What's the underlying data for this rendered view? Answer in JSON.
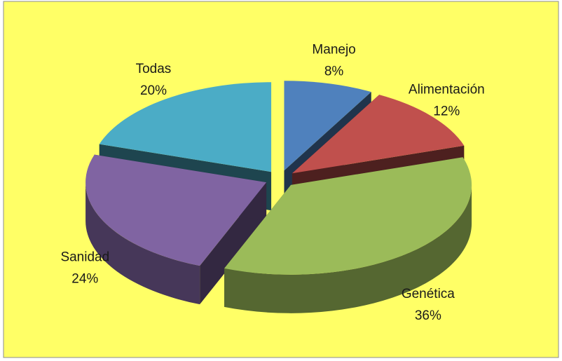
{
  "chart_data": {
    "type": "pie",
    "categories": [
      "Manejo",
      "Alimentación",
      "Genética",
      "Sanidad",
      "Todas"
    ],
    "values": [
      8,
      12,
      36,
      24,
      20
    ],
    "value_labels": [
      "8%",
      "12%",
      "36%",
      "24%",
      "20%"
    ],
    "colors": [
      "#4f81bd",
      "#c0504d",
      "#9bbb59",
      "#8064a2",
      "#4bacc6"
    ]
  }
}
